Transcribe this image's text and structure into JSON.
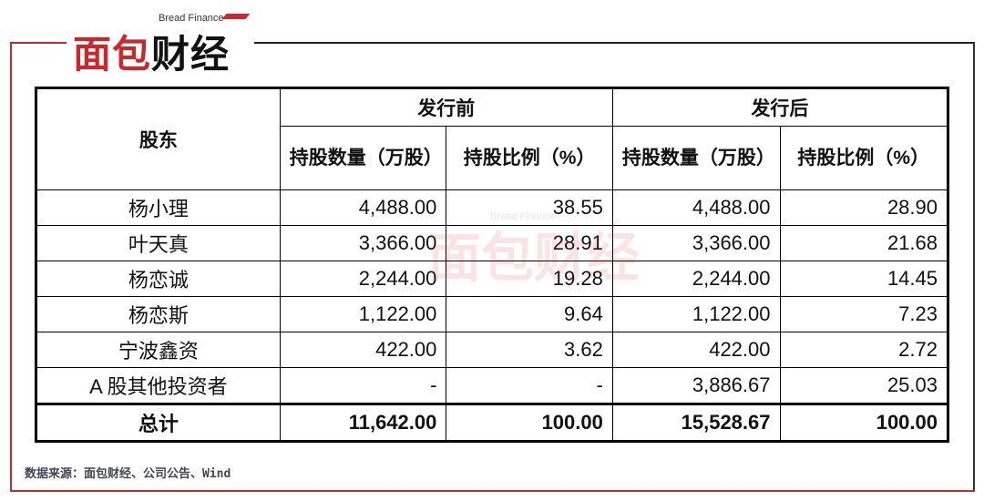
{
  "logo": {
    "en": "Bread Finance",
    "cn_red": "面包",
    "cn_black": "财经",
    "brand_color": "#c8282e"
  },
  "watermark": {
    "en": "Bread Finance",
    "cn": "面包财经"
  },
  "table": {
    "header": {
      "shareholder": "股东",
      "before": "发行前",
      "after": "发行后",
      "shares_label": "持股数量（万股）",
      "ratio_label": "持股比例（%）"
    },
    "rows": [
      {
        "name": "杨小理",
        "before_shares": "4,488.00",
        "before_ratio": "38.55",
        "after_shares": "4,488.00",
        "after_ratio": "28.90"
      },
      {
        "name": "叶天真",
        "before_shares": "3,366.00",
        "before_ratio": "28.91",
        "after_shares": "3,366.00",
        "after_ratio": "21.68"
      },
      {
        "name": "杨恋诚",
        "before_shares": "2,244.00",
        "before_ratio": "19.28",
        "after_shares": "2,244.00",
        "after_ratio": "14.45"
      },
      {
        "name": "杨恋斯",
        "before_shares": "1,122.00",
        "before_ratio": "9.64",
        "after_shares": "1,122.00",
        "after_ratio": "7.23"
      },
      {
        "name": "宁波鑫资",
        "before_shares": "422.00",
        "before_ratio": "3.62",
        "after_shares": "422.00",
        "after_ratio": "2.72"
      },
      {
        "name": "A 股其他投资者",
        "before_shares": "-",
        "before_ratio": "-",
        "after_shares": "3,886.67",
        "after_ratio": "25.03"
      }
    ],
    "total": {
      "name": "总计",
      "before_shares": "11,642.00",
      "before_ratio": "100.00",
      "after_shares": "15,528.67",
      "after_ratio": "100.00"
    }
  },
  "source": "数据来源：面包财经、公司公告、Wind"
}
